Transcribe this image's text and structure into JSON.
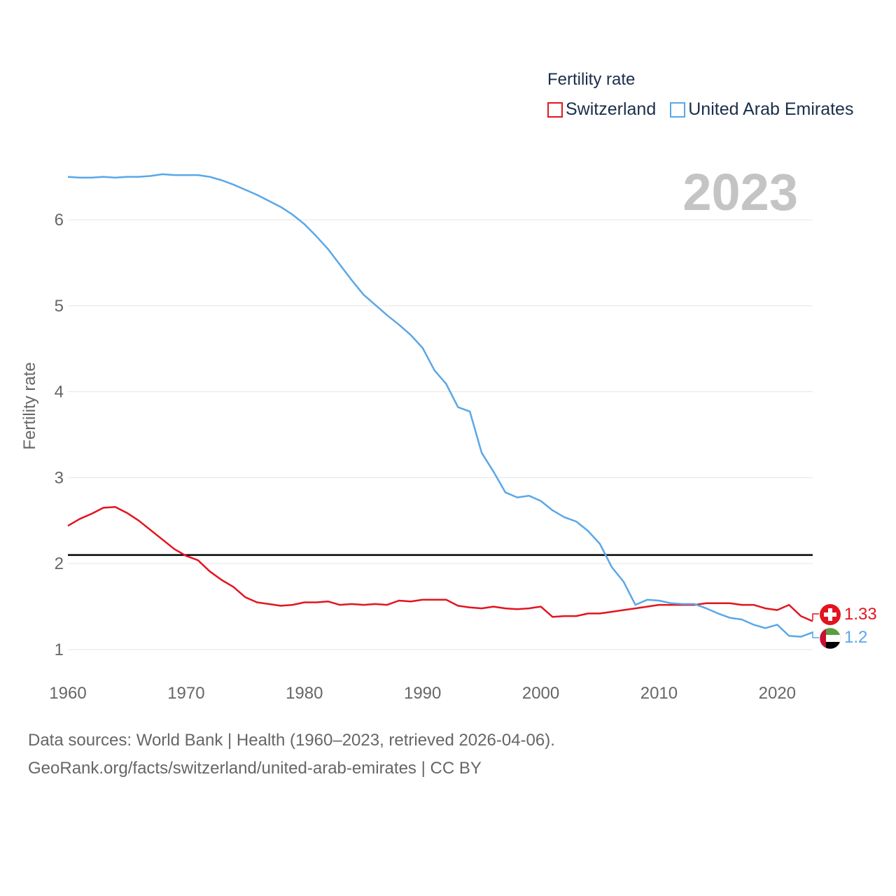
{
  "legend": {
    "title": "Fertility rate",
    "items": [
      {
        "label": "Switzerland",
        "color": "#e3141f"
      },
      {
        "label": "United Arab Emirates",
        "color": "#5aa7e8"
      }
    ]
  },
  "year_label": "2023",
  "footer": {
    "line1": "Data sources: World Bank | Health (1960–2023, retrieved 2026-04-06).",
    "line2": "GeoRank.org/facts/switzerland/united-arab-emirates | CC BY"
  },
  "end_labels": {
    "switzerland": "1.33",
    "uae": "1.2"
  },
  "chart_data": {
    "type": "line",
    "title": "Fertility rate",
    "ylabel": "Fertility rate",
    "xlabel": "",
    "xlim": [
      1960,
      2023
    ],
    "ylim": [
      0.8,
      6.6
    ],
    "xticks": [
      1960,
      1970,
      1980,
      1990,
      2000,
      2010,
      2020
    ],
    "yticks": [
      1,
      2,
      3,
      4,
      5,
      6
    ],
    "reference_line": 2.1,
    "x": [
      1960,
      1961,
      1962,
      1963,
      1964,
      1965,
      1966,
      1967,
      1968,
      1969,
      1970,
      1971,
      1972,
      1973,
      1974,
      1975,
      1976,
      1977,
      1978,
      1979,
      1980,
      1981,
      1982,
      1983,
      1984,
      1985,
      1986,
      1987,
      1988,
      1989,
      1990,
      1991,
      1992,
      1993,
      1994,
      1995,
      1996,
      1997,
      1998,
      1999,
      2000,
      2001,
      2002,
      2003,
      2004,
      2005,
      2006,
      2007,
      2008,
      2009,
      2010,
      2011,
      2012,
      2013,
      2014,
      2015,
      2016,
      2017,
      2018,
      2019,
      2020,
      2021,
      2022,
      2023
    ],
    "series": [
      {
        "name": "Switzerland",
        "color": "#e3141f",
        "values": [
          2.44,
          2.52,
          2.58,
          2.65,
          2.66,
          2.59,
          2.5,
          2.39,
          2.28,
          2.17,
          2.09,
          2.04,
          1.91,
          1.81,
          1.73,
          1.61,
          1.55,
          1.53,
          1.51,
          1.52,
          1.55,
          1.55,
          1.56,
          1.52,
          1.53,
          1.52,
          1.53,
          1.52,
          1.57,
          1.56,
          1.58,
          1.58,
          1.58,
          1.51,
          1.49,
          1.48,
          1.5,
          1.48,
          1.47,
          1.48,
          1.5,
          1.38,
          1.39,
          1.39,
          1.42,
          1.42,
          1.44,
          1.46,
          1.48,
          1.5,
          1.52,
          1.52,
          1.52,
          1.52,
          1.54,
          1.54,
          1.54,
          1.52,
          1.52,
          1.48,
          1.46,
          1.52,
          1.39,
          1.33
        ]
      },
      {
        "name": "United Arab Emirates",
        "color": "#5aa7e8",
        "values": [
          6.5,
          6.49,
          6.49,
          6.5,
          6.49,
          6.5,
          6.5,
          6.51,
          6.53,
          6.52,
          6.52,
          6.52,
          6.5,
          6.46,
          6.41,
          6.35,
          6.29,
          6.22,
          6.15,
          6.06,
          5.95,
          5.81,
          5.66,
          5.48,
          5.3,
          5.13,
          5.01,
          4.89,
          4.78,
          4.66,
          4.51,
          4.25,
          4.09,
          3.82,
          3.77,
          3.29,
          3.07,
          2.83,
          2.77,
          2.79,
          2.73,
          2.62,
          2.54,
          2.49,
          2.38,
          2.23,
          1.96,
          1.79,
          1.52,
          1.58,
          1.57,
          1.54,
          1.53,
          1.53,
          1.48,
          1.42,
          1.37,
          1.35,
          1.29,
          1.25,
          1.29,
          1.16,
          1.15,
          1.2
        ]
      }
    ]
  }
}
